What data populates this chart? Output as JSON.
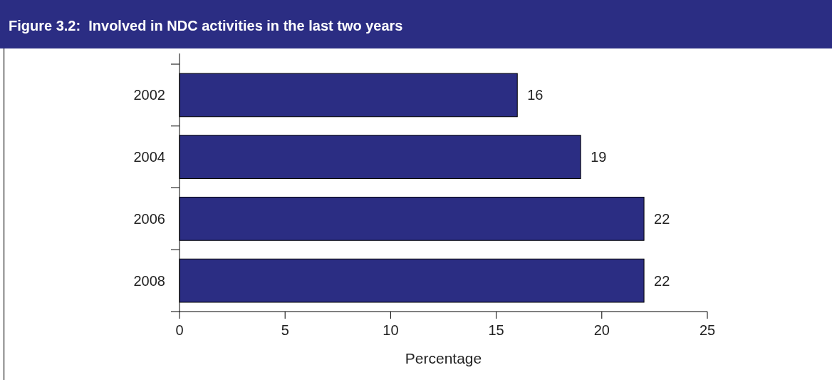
{
  "chart_data": {
    "type": "bar",
    "title": "Figure 3.2:  Involved in NDC activities in the last two years",
    "orientation": "horizontal",
    "categories": [
      "2002",
      "2004",
      "2006",
      "2008"
    ],
    "values": [
      16,
      19,
      22,
      22
    ],
    "color": "#2b2d83",
    "xlabel": "Percentage",
    "xlim": [
      0,
      25
    ],
    "xticks": [
      0,
      5,
      10,
      15,
      20,
      25
    ],
    "data_labels": true
  }
}
